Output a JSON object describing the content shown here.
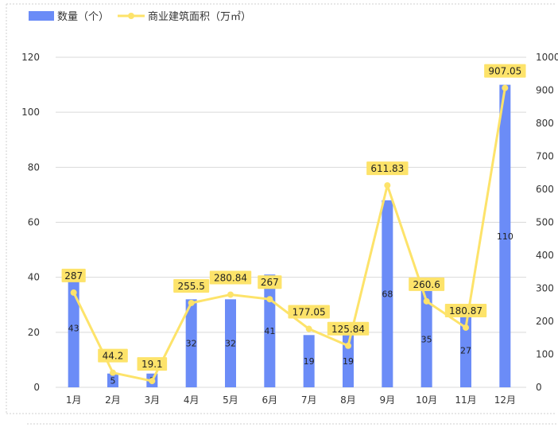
{
  "chart_data": {
    "type": "bar+line",
    "categories": [
      "1月",
      "2月",
      "3月",
      "4月",
      "5月",
      "6月",
      "7月",
      "8月",
      "9月",
      "10月",
      "11月",
      "12月"
    ],
    "series": [
      {
        "name": "数量（个）",
        "type": "bar",
        "axis": "left",
        "color": "#6b8cf7",
        "values": [
          43,
          5,
          5,
          32,
          32,
          41,
          19,
          19,
          68,
          35,
          27,
          110
        ],
        "labels": [
          "43",
          "5",
          "5",
          "32",
          "32",
          "41",
          "19",
          "19",
          "68",
          "35",
          "27",
          "110"
        ]
      },
      {
        "name": "商业建筑面积（万㎡）",
        "type": "line",
        "axis": "right",
        "color": "#fde36a",
        "values": [
          287,
          44.2,
          19.1,
          255.5,
          280.84,
          267,
          177.05,
          125.84,
          611.83,
          260.6,
          180.87,
          907.05
        ],
        "labels": [
          "287",
          "44.2",
          "19.1",
          "255.5",
          "280.84",
          "267",
          "177.05",
          "125.84",
          "611.83",
          "260.6",
          "180.87",
          "907.05"
        ]
      }
    ],
    "y_left": {
      "min": 0,
      "max": 120,
      "ticks": [
        "0",
        "20",
        "40",
        "60",
        "80",
        "100",
        "120"
      ]
    },
    "y_right": {
      "min": 0,
      "max": 1000,
      "ticks": [
        "0",
        "100",
        "200",
        "300",
        "400",
        "500",
        "600",
        "700",
        "800",
        "900",
        "1000"
      ]
    },
    "grid": true,
    "legend": "top-left"
  }
}
